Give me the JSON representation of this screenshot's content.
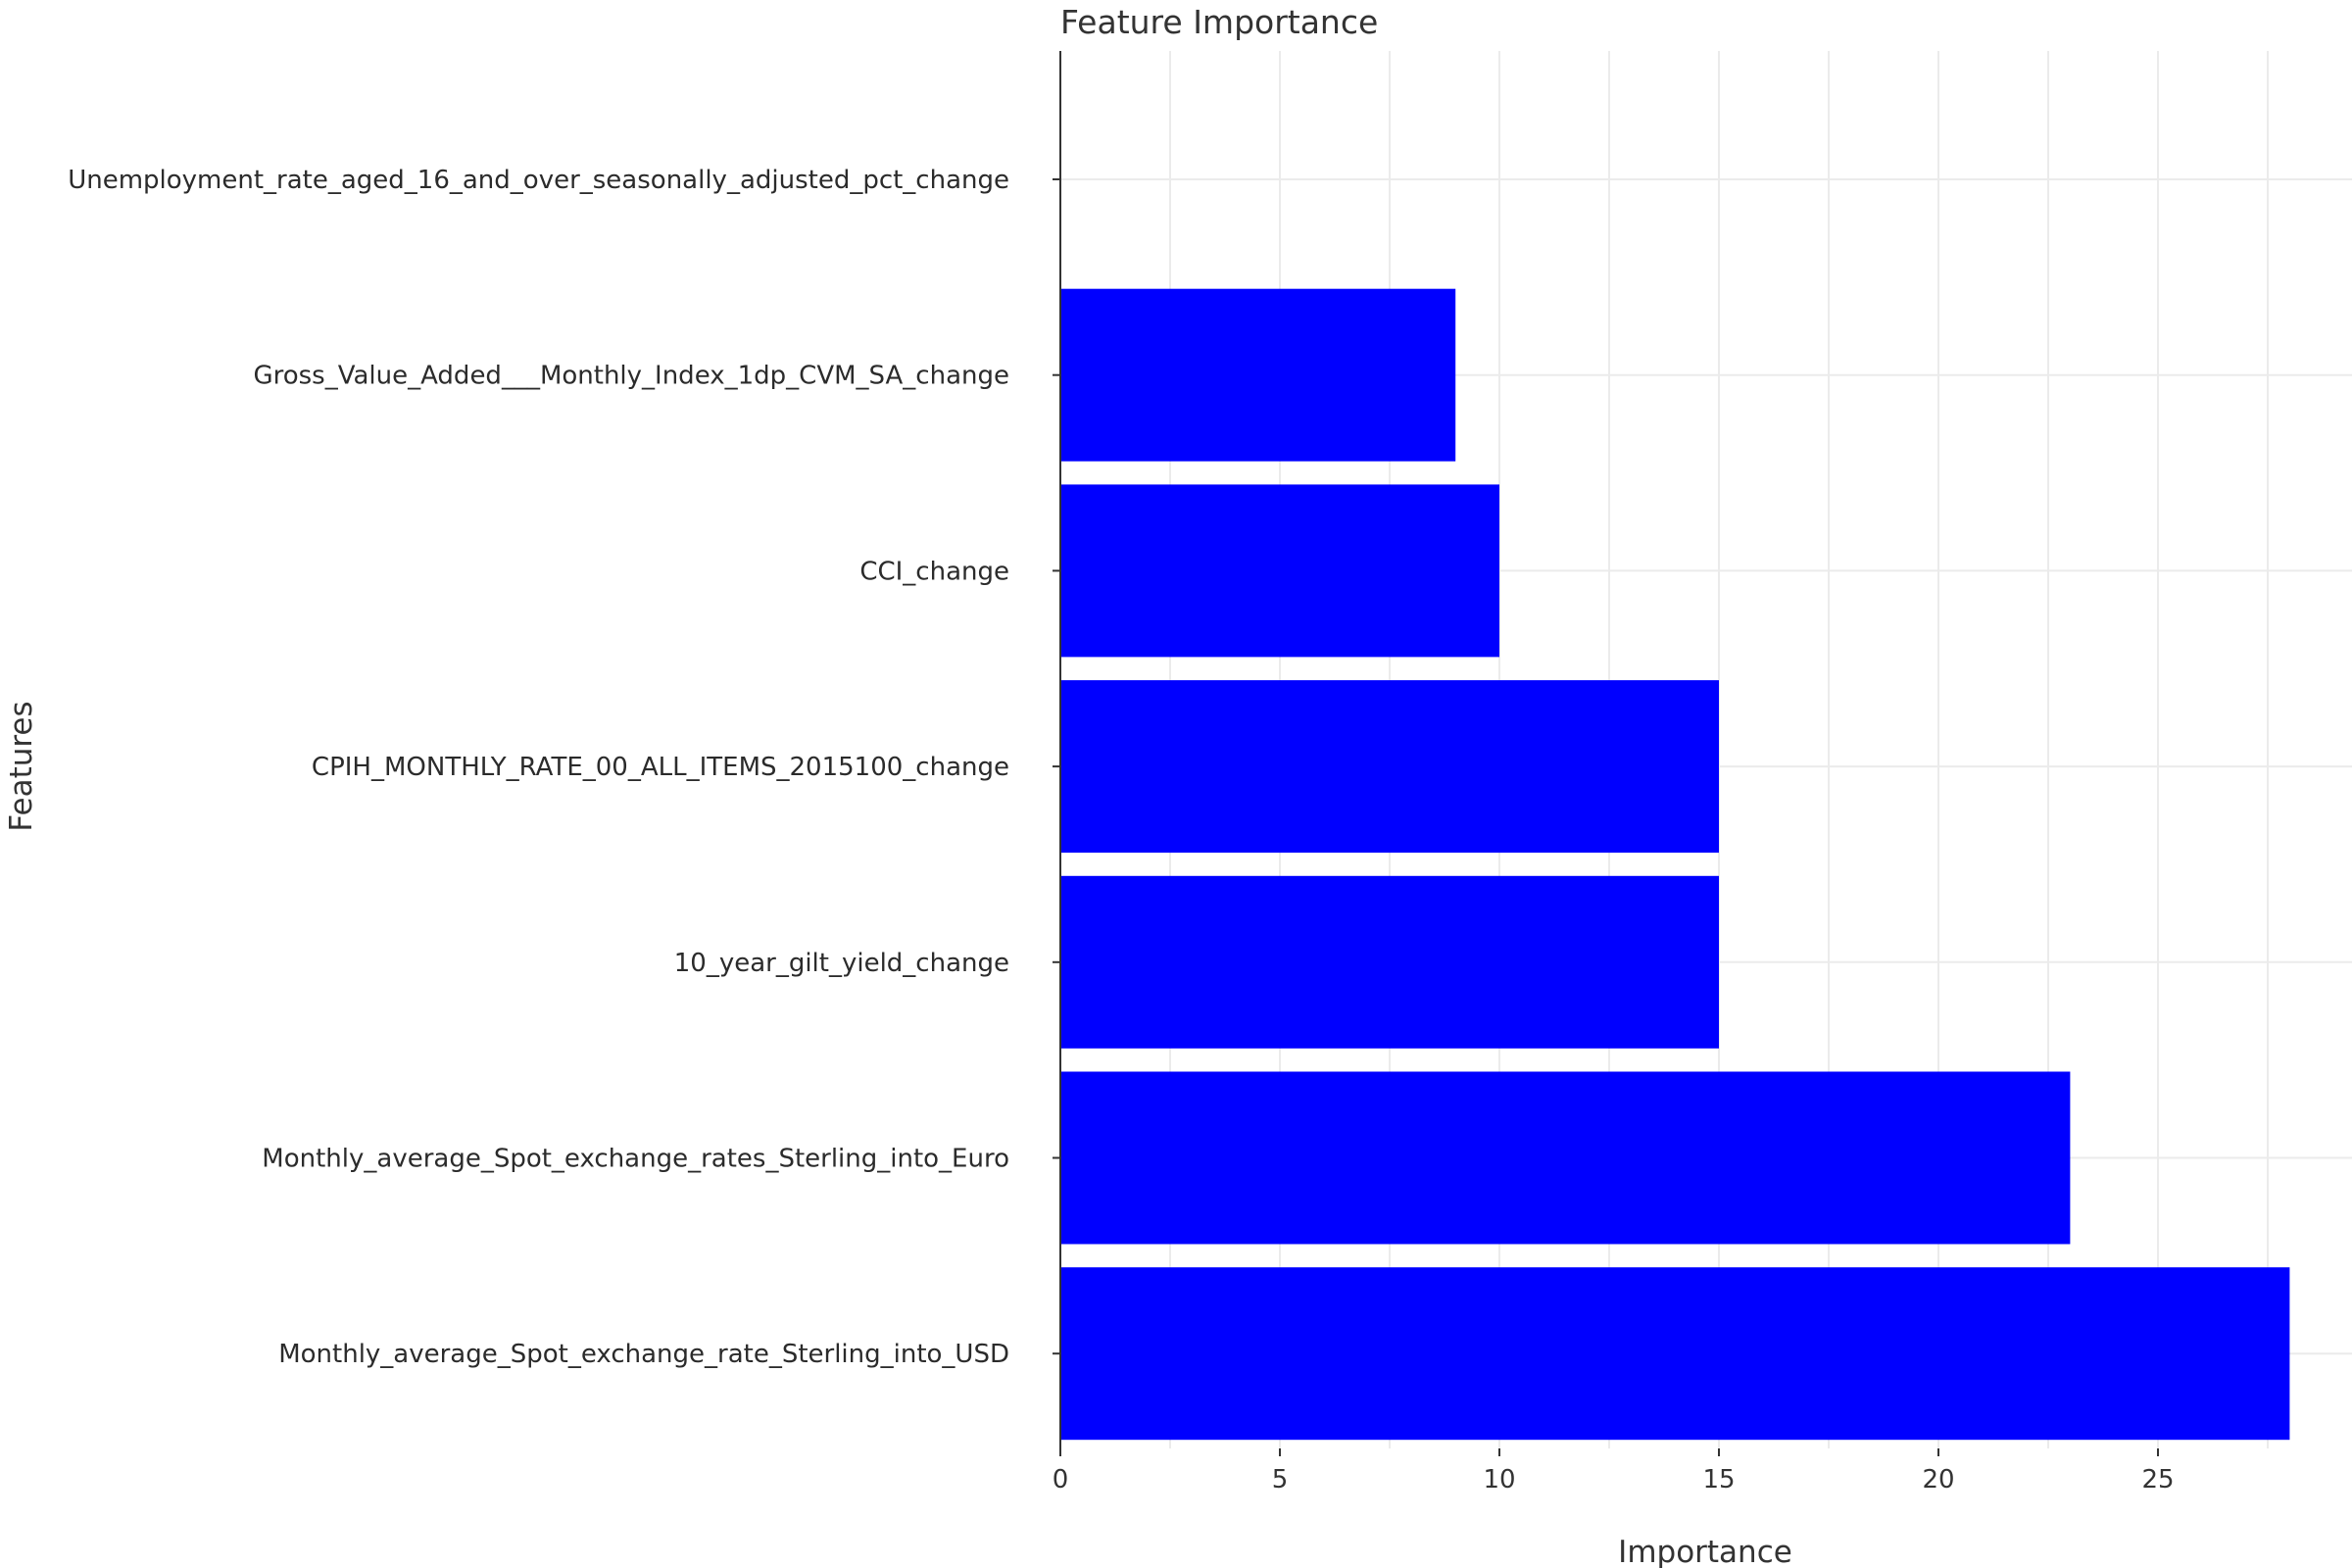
{
  "chart_data": {
    "type": "bar",
    "orientation": "horizontal",
    "title": "Feature Importance",
    "xlabel": "Importance",
    "ylabel": "Features",
    "xlim": [
      0,
      28
    ],
    "xticks": [
      0,
      5,
      10,
      15,
      20,
      25
    ],
    "grid": true,
    "legend": "none",
    "bar_color": "#0000ff",
    "categories": [
      "Unemployment_rate_aged_16_and_over_seasonally_adjusted_pct_change",
      "Gross_Value_Added___Monthly_Index_1dp_CVM_SA_change",
      "CCI_change",
      "CPIH_MONTHLY_RATE_00_ALL_ITEMS_2015100_change",
      "10_year_gilt_yield_change",
      "Monthly_average_Spot_exchange_rates_Sterling_into_Euro",
      "Monthly_average_Spot_exchange_rate_Sterling_into_USD"
    ],
    "values": [
      0,
      9,
      10,
      15,
      15,
      23,
      28
    ]
  }
}
